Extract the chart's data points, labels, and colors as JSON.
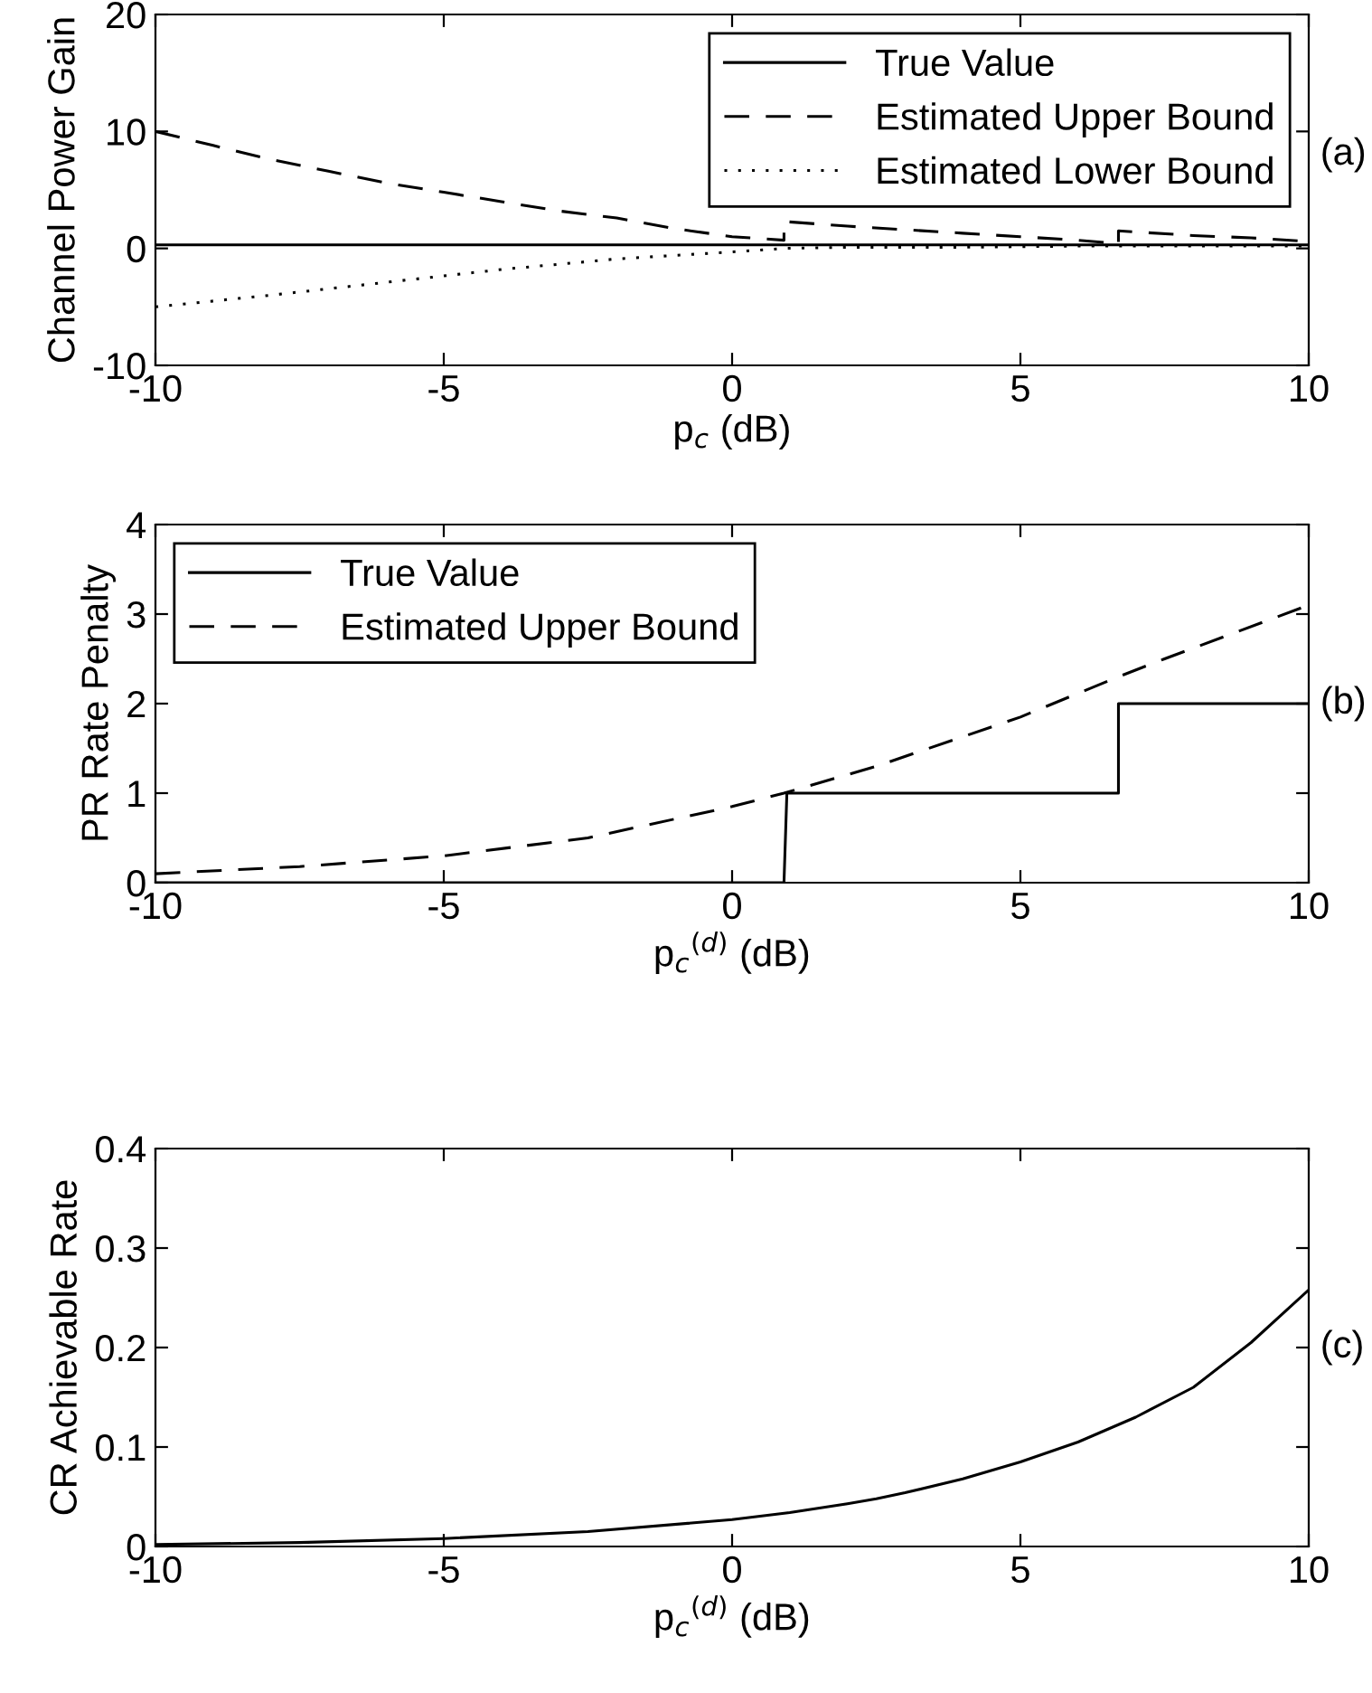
{
  "chart_data": [
    {
      "type": "line",
      "ylabel": "Channel Power Gain",
      "xlabel": "p$_{c}$ (dB)",
      "xlim": [
        -10,
        10
      ],
      "xticks": [
        -10,
        -5,
        0,
        5,
        10
      ],
      "ylim": [
        -10,
        20
      ],
      "yticks": [
        -10,
        0,
        10,
        20
      ],
      "legend": "top right",
      "grid": false,
      "annotations": [
        "(a)"
      ],
      "series": [
        {
          "name": "True Value",
          "color": "#000000",
          "line_style": "solid",
          "x": [
            -10,
            10
          ],
          "values": [
            0.3,
            0.3
          ]
        },
        {
          "name": "Estimated Upper Bound",
          "color": "#000000",
          "line_style": "dashed",
          "x": [
            -10,
            -9,
            -8,
            -7,
            -6,
            -5,
            -4,
            -3,
            -2,
            -1,
            0,
            0.9,
            0.9,
            2,
            3,
            4,
            5,
            6,
            6.7,
            6.7,
            8,
            9,
            10
          ],
          "values": [
            10,
            8.8,
            7.6,
            6.6,
            5.6,
            4.8,
            4,
            3.2,
            2.6,
            1.7,
            1.0,
            0.7,
            2.3,
            1.9,
            1.6,
            1.3,
            1.0,
            0.7,
            0.4,
            1.5,
            1.1,
            0.9,
            0.6
          ]
        },
        {
          "name": "Estimated Lower Bound",
          "color": "#000000",
          "line_style": "dotted",
          "x": [
            -10,
            -8,
            -6,
            -4,
            -2,
            0,
            0.9,
            2,
            4,
            6,
            8,
            10
          ],
          "values": [
            -5,
            -4,
            -2.9,
            -1.8,
            -0.9,
            -0.3,
            0,
            0.1,
            0.1,
            0.2,
            0.2,
            0.2
          ]
        }
      ]
    },
    {
      "type": "line",
      "ylabel": "PR Rate Penalty",
      "xlabel": "p$_{c}$$^{(d)}$ (dB)",
      "xlim": [
        -10,
        10
      ],
      "xticks": [
        -10,
        -5,
        0,
        5,
        10
      ],
      "ylim": [
        0,
        4
      ],
      "yticks": [
        0,
        1,
        2,
        3,
        4
      ],
      "legend": "top left",
      "grid": false,
      "annotations": [
        "(b)"
      ],
      "series": [
        {
          "name": "True Value",
          "color": "#000000",
          "line_style": "solid",
          "x": [
            -10,
            0.9,
            0.95,
            6.7,
            6.7,
            10
          ],
          "values": [
            0,
            0,
            1,
            1,
            2,
            2
          ]
        },
        {
          "name": "Estimated Upper Bound",
          "color": "#000000",
          "line_style": "dashed",
          "x": [
            -10,
            -7.5,
            -5,
            -2.5,
            0,
            0.9,
            2.5,
            5,
            6.7,
            7.5,
            10
          ],
          "values": [
            0.1,
            0.18,
            0.3,
            0.5,
            0.85,
            1.0,
            1.3,
            1.85,
            2.3,
            2.5,
            3.1
          ]
        }
      ]
    },
    {
      "type": "line",
      "ylabel": "CR Achievable Rate",
      "xlabel": "p$_{c}$$^{(d)}$ (dB)",
      "xlim": [
        -10,
        10
      ],
      "xticks": [
        -10,
        -5,
        0,
        5,
        10
      ],
      "ylim": [
        0,
        0.4
      ],
      "yticks": [
        {
          "value": 0,
          "label": "0"
        },
        0.1,
        0.2,
        0.3,
        0.4
      ],
      "legend": false,
      "grid": false,
      "annotations": [
        "(c)"
      ],
      "series": [
        {
          "color": "#000000",
          "line_style": "solid",
          "x": [
            -10,
            -7.5,
            -5,
            -2.5,
            0,
            1,
            2,
            2.5,
            3,
            4,
            5,
            6,
            7,
            8,
            9,
            10
          ],
          "values": [
            0.002,
            0.004,
            0.008,
            0.015,
            0.027,
            0.034,
            0.043,
            0.048,
            0.054,
            0.068,
            0.085,
            0.105,
            0.13,
            0.16,
            0.205,
            0.258
          ]
        }
      ]
    }
  ]
}
